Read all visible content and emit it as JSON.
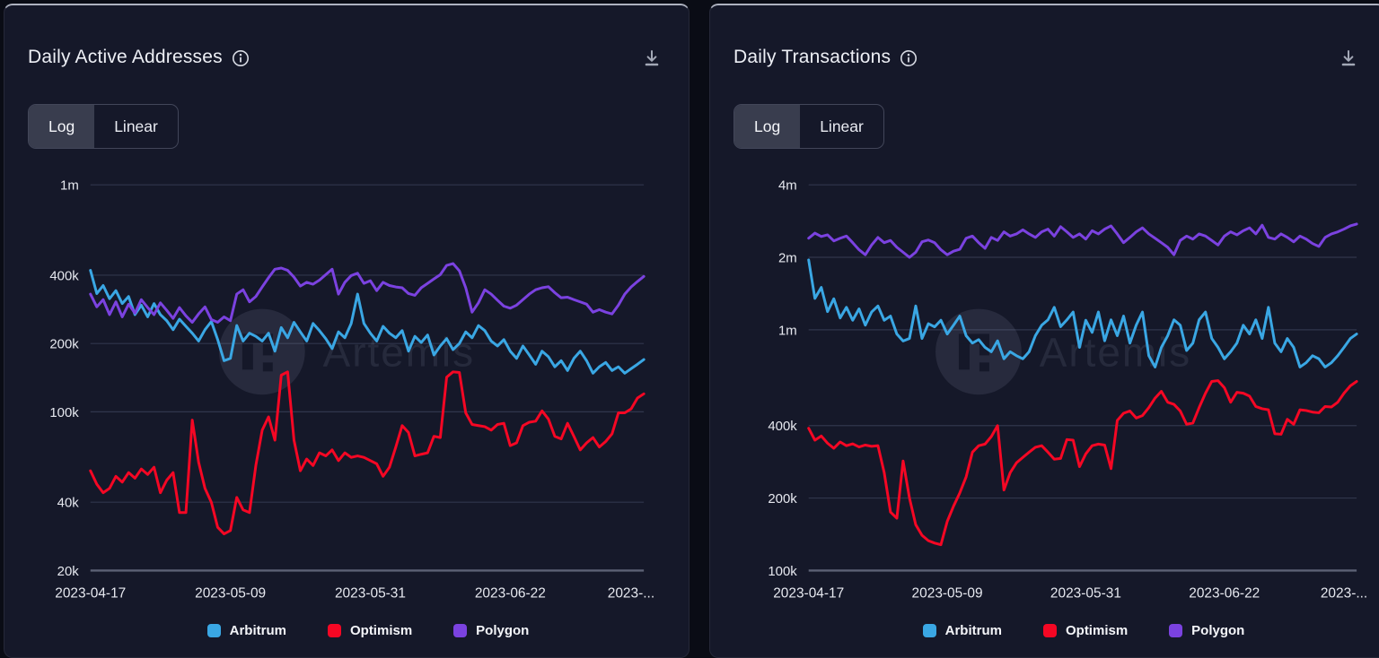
{
  "page": {
    "background": "#0a0c15",
    "card_background": "#151829",
    "watermark_text": "Artemis"
  },
  "cards": [
    {
      "title": "Daily Active Addresses",
      "icons": {
        "info": "info-circle",
        "download": "download-tray"
      },
      "toggle": {
        "options": [
          "Log",
          "Linear"
        ],
        "active": "Log"
      },
      "chart_data": {
        "type": "line",
        "title": "Daily Active Addresses",
        "y_scale": "log",
        "grid": "horizontal",
        "legend_position": "bottom",
        "days_total": 87,
        "x_tick_days": [
          0,
          22,
          44,
          66,
          85
        ],
        "x_tick_labels": [
          "2023-04-17",
          "2023-05-09",
          "2023-05-31",
          "2023-06-22",
          "2023-..."
        ],
        "y_ticks": [
          {
            "label": "20k",
            "value": 20000
          },
          {
            "label": "40k",
            "value": 40000
          },
          {
            "label": "100k",
            "value": 100000
          },
          {
            "label": "200k",
            "value": 200000
          },
          {
            "label": "400k",
            "value": 400000
          },
          {
            "label": "1m",
            "value": 1000000
          }
        ],
        "y_top_value": 1000000,
        "values_unit": "thousands",
        "series": [
          {
            "name": "Arbitrum",
            "color": "#3aa7e4",
            "values_thousands": [
              420,
              332,
              360,
              315,
              342,
              300,
              322,
              268,
              295,
              262,
              300,
              268,
              252,
              230,
              256,
              238,
              222,
              205,
              230,
              250,
              208,
              168,
              172,
              240,
              205,
              222,
              215,
              205,
              222,
              185,
              235,
              212,
              248,
              225,
              205,
              245,
              228,
              210,
              190,
              225,
              212,
              245,
              330,
              245,
              222,
              205,
              238,
              222,
              212,
              228,
              185,
              215,
              202,
              218,
              178,
              195,
              210,
              188,
              200,
              225,
              212,
              240,
              228,
              205,
              195,
              208,
              185,
              172,
              195,
              178,
              162,
              185,
              175,
              158,
              168,
              152,
              172,
              185,
              168,
              148,
              158,
              165,
              152,
              158,
              148,
              155,
              162,
              170
            ]
          },
          {
            "name": "Optimism",
            "color": "#f50724",
            "values_thousands": [
              55,
              48,
              44,
              46,
              52,
              49,
              54,
              51,
              56,
              53,
              57,
              44,
              50,
              54,
              36,
              36,
              92,
              60,
              46,
              40,
              31,
              29,
              30,
              42,
              37,
              36,
              58,
              83,
              95,
              75,
              145,
              150,
              75,
              55,
              62,
              58,
              66,
              64,
              68,
              61,
              66,
              63,
              64,
              63,
              61,
              59,
              52,
              57,
              70,
              87,
              81,
              64,
              65,
              66,
              78,
              77,
              142,
              150,
              149,
              99,
              88,
              87,
              86,
              83,
              88,
              89,
              71,
              73,
              87,
              90,
              91,
              101,
              93,
              78,
              76,
              89,
              78,
              68,
              73,
              77,
              70,
              74,
              80,
              99,
              99,
              103,
              115,
              120
            ]
          },
          {
            "name": "Polygon",
            "color": "#7b42e0",
            "values_thousands": [
              330,
              290,
              312,
              268,
              305,
              262,
              298,
              272,
              312,
              288,
              268,
              302,
              280,
              258,
              288,
              265,
              248,
              270,
              290,
              255,
              248,
              262,
              252,
              330,
              345,
              305,
              322,
              355,
              390,
              425,
              430,
              420,
              392,
              358,
              372,
              365,
              380,
              402,
              425,
              330,
              372,
              398,
              408,
              368,
              378,
              342,
              372,
              360,
              355,
              352,
              332,
              326,
              352,
              368,
              385,
              402,
              442,
              450,
              418,
              352,
              275,
              302,
              345,
              330,
              310,
              292,
              286,
              295,
              312,
              330,
              345,
              352,
              356,
              335,
              318,
              320,
              312,
              305,
              298,
              275,
              282,
              275,
              270,
              295,
              330,
              355,
              375,
              395
            ]
          }
        ]
      }
    },
    {
      "title": "Daily Transactions",
      "icons": {
        "info": "info-circle",
        "download": "download-tray"
      },
      "toggle": {
        "options": [
          "Log",
          "Linear"
        ],
        "active": "Log"
      },
      "chart_data": {
        "type": "line",
        "title": "Daily Transactions",
        "y_scale": "log",
        "grid": "horizontal",
        "legend_position": "bottom",
        "days_total": 87,
        "x_tick_days": [
          0,
          22,
          44,
          66,
          85
        ],
        "x_tick_labels": [
          "2023-04-17",
          "2023-05-09",
          "2023-05-31",
          "2023-06-22",
          "2023-..."
        ],
        "y_ticks": [
          {
            "label": "100k",
            "value": 100000
          },
          {
            "label": "200k",
            "value": 200000
          },
          {
            "label": "400k",
            "value": 400000
          },
          {
            "label": "1m",
            "value": 1000000
          },
          {
            "label": "2m",
            "value": 2000000
          },
          {
            "label": "4m",
            "value": 4000000
          }
        ],
        "y_top_value": 4000000,
        "values_unit": "thousands",
        "series": [
          {
            "name": "Arbitrum",
            "color": "#3aa7e4",
            "values_thousands": [
              1950,
              1350,
              1500,
              1190,
              1345,
              1120,
              1240,
              1095,
              1222,
              1045,
              1185,
              1255,
              1095,
              1140,
              960,
              898,
              920,
              1255,
              920,
              1060,
              1028,
              1095,
              960,
              1045,
              1140,
              945,
              880,
              910,
              845,
              810,
              900,
              757,
              810,
              780,
              757,
              810,
              945,
              1045,
              1100,
              1240,
              1030,
              1100,
              1185,
              845,
              1095,
              975,
              1185,
              900,
              1100,
              945,
              1140,
              880,
              1045,
              1185,
              780,
              700,
              845,
              945,
              1100,
              1045,
              820,
              880,
              1100,
              1185,
              920,
              845,
              757,
              810,
              880,
              1045,
              960,
              1100,
              920,
              1240,
              880,
              810,
              920,
              845,
              700,
              730,
              780,
              757,
              700,
              730,
              780,
              845,
              920,
              960
            ]
          },
          {
            "name": "Optimism",
            "color": "#f50724",
            "values_thousands": [
              390,
              348,
              362,
              338,
              322,
              342,
              330,
              336,
              326,
              332,
              328,
              330,
              255,
              175,
              165,
              285,
              200,
              155,
              140,
              133,
              130,
              128,
              160,
              185,
              210,
              245,
              310,
              330,
              335,
              360,
              400,
              216,
              255,
              280,
              295,
              310,
              325,
              330,
              310,
              290,
              292,
              350,
              348,
              270,
              305,
              330,
              335,
              332,
              265,
              420,
              450,
              460,
              430,
              440,
              475,
              520,
              555,
              500,
              490,
              460,
              405,
              410,
              475,
              545,
              610,
              615,
              575,
              500,
              550,
              545,
              530,
              480,
              470,
              465,
              370,
              368,
              425,
              405,
              465,
              462,
              455,
              452,
              480,
              478,
              500,
              545,
              585,
              610
            ]
          },
          {
            "name": "Polygon",
            "color": "#7b42e0",
            "values_thousands": [
              2400,
              2520,
              2440,
              2480,
              2340,
              2400,
              2450,
              2300,
              2150,
              2050,
              2250,
              2420,
              2300,
              2350,
              2200,
              2100,
              2000,
              2100,
              2320,
              2360,
              2300,
              2150,
              2050,
              2120,
              2160,
              2400,
              2450,
              2300,
              2180,
              2420,
              2350,
              2550,
              2450,
              2500,
              2600,
              2500,
              2420,
              2550,
              2620,
              2450,
              2680,
              2550,
              2420,
              2500,
              2380,
              2580,
              2500,
              2620,
              2700,
              2500,
              2300,
              2420,
              2550,
              2650,
              2500,
              2400,
              2300,
              2200,
              2050,
              2350,
              2450,
              2380,
              2500,
              2450,
              2350,
              2250,
              2450,
              2550,
              2480,
              2580,
              2650,
              2500,
              2720,
              2420,
              2380,
              2500,
              2420,
              2320,
              2450,
              2380,
              2280,
              2220,
              2420,
              2500,
              2550,
              2620,
              2700,
              2750
            ]
          }
        ]
      }
    }
  ]
}
